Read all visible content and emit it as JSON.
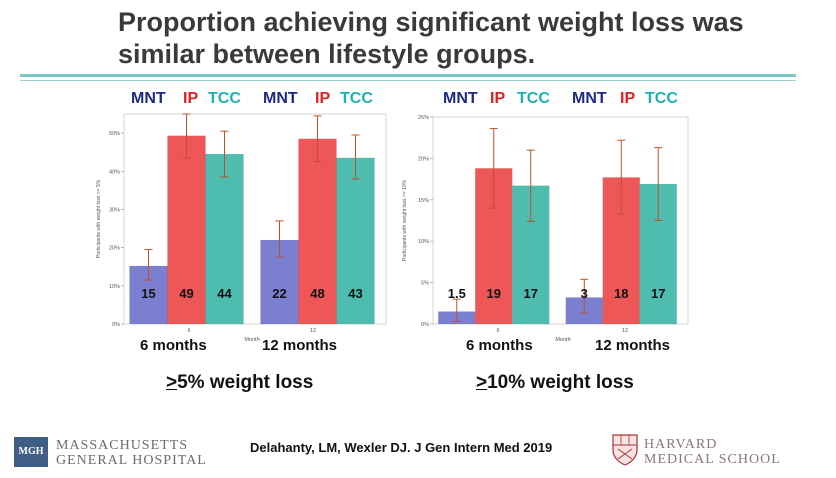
{
  "slide": {
    "title": "Proportion achieving significant weight loss was similar between lifestyle groups.",
    "citation": "Delahanty, LM, Wexler DJ. J Gen Intern Med 2019",
    "mgh_logo": {
      "badge": "MGH",
      "line1": "MASSACHUSETTS",
      "line2": "GENERAL HOSPITAL"
    },
    "harvard_logo": {
      "line1": "HARVARD",
      "line2": "MEDICAL SCHOOL"
    }
  },
  "colors": {
    "MNT": "#7b7fd0",
    "IP": "#ee5757",
    "TCC": "#4ebcaf",
    "legend_MNT": "#1c2a87",
    "legend_IP": "#e02020",
    "legend_TCC": "#1bb3b0",
    "error_bar": "#c0502a"
  },
  "chart_data": [
    {
      "type": "bar",
      "categories": [
        "6",
        "12"
      ],
      "category_labels": [
        "6 months",
        "12 months"
      ],
      "xlabel": "Month",
      "ylabel": "Participants with weight loss >= 5%",
      "ylim": [
        0,
        55
      ],
      "yticks": [
        0,
        10,
        20,
        30,
        40,
        50
      ],
      "ytick_labels": [
        "0%",
        "10%",
        "20%",
        "30%",
        "40%",
        "50%"
      ],
      "legend": [
        "MNT",
        "IP",
        "TCC"
      ],
      "series": [
        {
          "name": "MNT",
          "values": [
            15.2,
            22
          ],
          "labels": [
            "15",
            "22"
          ],
          "err_low": [
            11.5,
            17.5
          ],
          "err_high": [
            19.5,
            27
          ]
        },
        {
          "name": "IP",
          "values": [
            49.3,
            48.5
          ],
          "labels": [
            "49",
            "48"
          ],
          "err_low": [
            43.5,
            42.5
          ],
          "err_high": [
            55,
            54.5
          ]
        },
        {
          "name": "TCC",
          "values": [
            44.5,
            43.5
          ],
          "labels": [
            "44",
            "43"
          ],
          "err_low": [
            38.5,
            38
          ],
          "err_high": [
            50.5,
            49.5
          ]
        }
      ],
      "subtitle_prefix": ">",
      "subtitle": "5% weight loss"
    },
    {
      "type": "bar",
      "categories": [
        "6",
        "12"
      ],
      "category_labels": [
        "6 months",
        "12 months"
      ],
      "xlabel": "Month",
      "ylabel": "Participants with weight loss >= 10%",
      "ylim": [
        0,
        25
      ],
      "yticks": [
        0,
        5,
        10,
        15,
        20,
        25
      ],
      "ytick_labels": [
        "0%",
        "5%",
        "10%",
        "15%",
        "20%",
        "25%"
      ],
      "legend": [
        "MNT",
        "IP",
        "TCC"
      ],
      "series": [
        {
          "name": "MNT",
          "values": [
            1.5,
            3.2
          ],
          "labels": [
            "1.5",
            "3"
          ],
          "err_low": [
            0.3,
            1.3
          ],
          "err_high": [
            3,
            5.4
          ]
        },
        {
          "name": "IP",
          "values": [
            18.8,
            17.7
          ],
          "labels": [
            "19",
            "18"
          ],
          "err_low": [
            14,
            13.3
          ],
          "err_high": [
            23.6,
            22.2
          ]
        },
        {
          "name": "TCC",
          "values": [
            16.7,
            16.9
          ],
          "labels": [
            "17",
            "17"
          ],
          "err_low": [
            12.4,
            12.5
          ],
          "err_high": [
            21,
            21.3
          ]
        }
      ],
      "subtitle_prefix": ">",
      "subtitle": "10% weight loss"
    }
  ]
}
